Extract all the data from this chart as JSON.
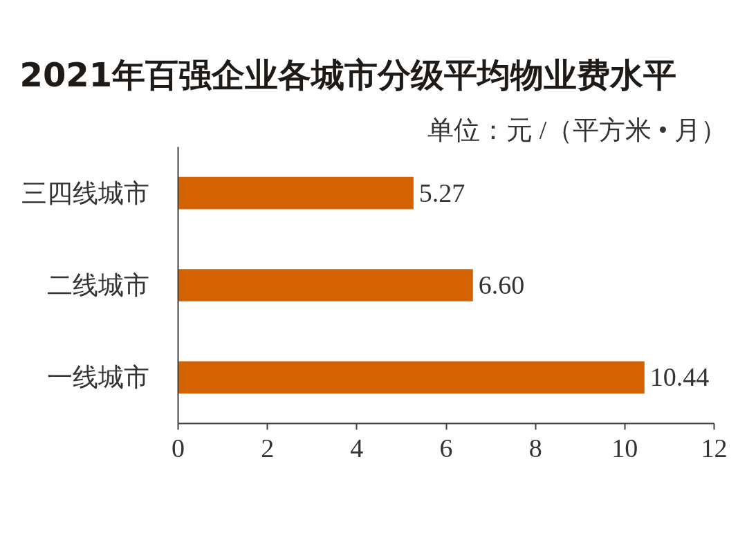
{
  "chart_data": {
    "type": "bar",
    "orientation": "horizontal",
    "title": "2021年百强企业各城市分级平均物业费水平",
    "subtitle": "单位：元 /（平方米 • 月）",
    "categories": [
      "三四线城市",
      "二线城市",
      "一线城市"
    ],
    "values": [
      5.27,
      6.6,
      10.44
    ],
    "value_labels": [
      "5.27",
      "6.60",
      "10.44"
    ],
    "color": "#d46200",
    "xlim": [
      0,
      12
    ],
    "xticks": [
      0,
      2,
      4,
      6,
      8,
      10,
      12
    ],
    "grid": false
  }
}
